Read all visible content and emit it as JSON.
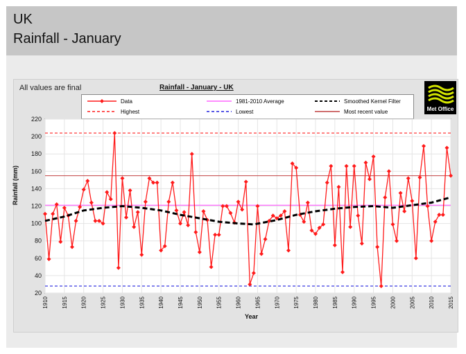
{
  "header": {
    "region": "UK",
    "subtitle": "Rainfall - January"
  },
  "note": "All values are final",
  "logo_text": "Met Office",
  "legend": {
    "data": "Data",
    "average": "1981-2010 Average",
    "kernel": "Smoothed Kernel Filter",
    "highest": "Highest",
    "lowest": "Lowest",
    "recent": "Most recent value"
  },
  "colors": {
    "data": "#ff1a1a",
    "average": "#ff66ff",
    "kernel": "#000000",
    "highest": "#ff2020",
    "lowest": "#2222dd",
    "recent": "#c04040",
    "plot_bg": "#ffffff"
  },
  "chart_data": {
    "type": "line",
    "title": "Rainfall - January - UK",
    "xlabel": "Year",
    "ylabel": "Rainfall (mm)",
    "xlim": [
      1910,
      2015
    ],
    "ylim": [
      20,
      220
    ],
    "yticks": [
      20,
      40,
      60,
      80,
      100,
      120,
      140,
      160,
      180,
      200,
      220
    ],
    "xticks": [
      1910,
      1915,
      1920,
      1925,
      1930,
      1935,
      1940,
      1945,
      1950,
      1955,
      1960,
      1965,
      1970,
      1975,
      1980,
      1985,
      1990,
      1995,
      2000,
      2005,
      2010,
      2015
    ],
    "grid": true,
    "series": [
      {
        "name": "Data",
        "x": [
          1910,
          1911,
          1912,
          1913,
          1914,
          1915,
          1916,
          1917,
          1918,
          1919,
          1920,
          1921,
          1922,
          1923,
          1924,
          1925,
          1926,
          1927,
          1928,
          1929,
          1930,
          1931,
          1932,
          1933,
          1934,
          1935,
          1936,
          1937,
          1938,
          1939,
          1940,
          1941,
          1942,
          1943,
          1944,
          1945,
          1946,
          1947,
          1948,
          1949,
          1950,
          1951,
          1952,
          1953,
          1954,
          1955,
          1956,
          1957,
          1958,
          1959,
          1960,
          1961,
          1962,
          1963,
          1964,
          1965,
          1966,
          1967,
          1968,
          1969,
          1970,
          1971,
          1972,
          1973,
          1974,
          1975,
          1976,
          1977,
          1978,
          1979,
          1980,
          1981,
          1982,
          1983,
          1984,
          1985,
          1986,
          1987,
          1988,
          1989,
          1990,
          1991,
          1992,
          1993,
          1994,
          1995,
          1996,
          1997,
          1998,
          1999,
          2000,
          2001,
          2002,
          2003,
          2004,
          2005,
          2006,
          2007,
          2008,
          2009,
          2010,
          2011,
          2012,
          2013,
          2014,
          2015
        ],
        "values": [
          111,
          59,
          111,
          122,
          79,
          118,
          109,
          73,
          103,
          119,
          139,
          149,
          124,
          103,
          103,
          100,
          136,
          128,
          204,
          49,
          152,
          107,
          138,
          96,
          113,
          64,
          125,
          152,
          147,
          147,
          69,
          74,
          125,
          147,
          115,
          100,
          113,
          98,
          180,
          90,
          67,
          114,
          104,
          50,
          87,
          87,
          120,
          120,
          112,
          101,
          125,
          116,
          148,
          30,
          43,
          120,
          65,
          82,
          103,
          109,
          106,
          109,
          114,
          69,
          169,
          164,
          110,
          102,
          124,
          92,
          88,
          95,
          99,
          147,
          166,
          75,
          142,
          44,
          166,
          96,
          166,
          109,
          77,
          170,
          151,
          177,
          73,
          28,
          130,
          160,
          99,
          80,
          135,
          114,
          152,
          126,
          60,
          153,
          189,
          120,
          80,
          102,
          110,
          110,
          187,
          155
        ]
      },
      {
        "name": "Smoothed Kernel Filter",
        "x": [
          1910,
          1915,
          1920,
          1925,
          1930,
          1935,
          1940,
          1945,
          1950,
          1955,
          1960,
          1964,
          1970,
          1975,
          1980,
          1985,
          1990,
          1995,
          2000,
          2005,
          2010,
          2015
        ],
        "values": [
          103,
          108,
          115,
          118,
          120,
          118,
          115,
          110,
          106,
          102,
          100,
          99,
          104,
          110,
          114,
          117,
          119,
          120,
          118,
          121,
          124,
          130
        ]
      }
    ],
    "reference_lines": {
      "average": 121,
      "highest": 204,
      "lowest": 28,
      "most_recent": 155
    }
  }
}
